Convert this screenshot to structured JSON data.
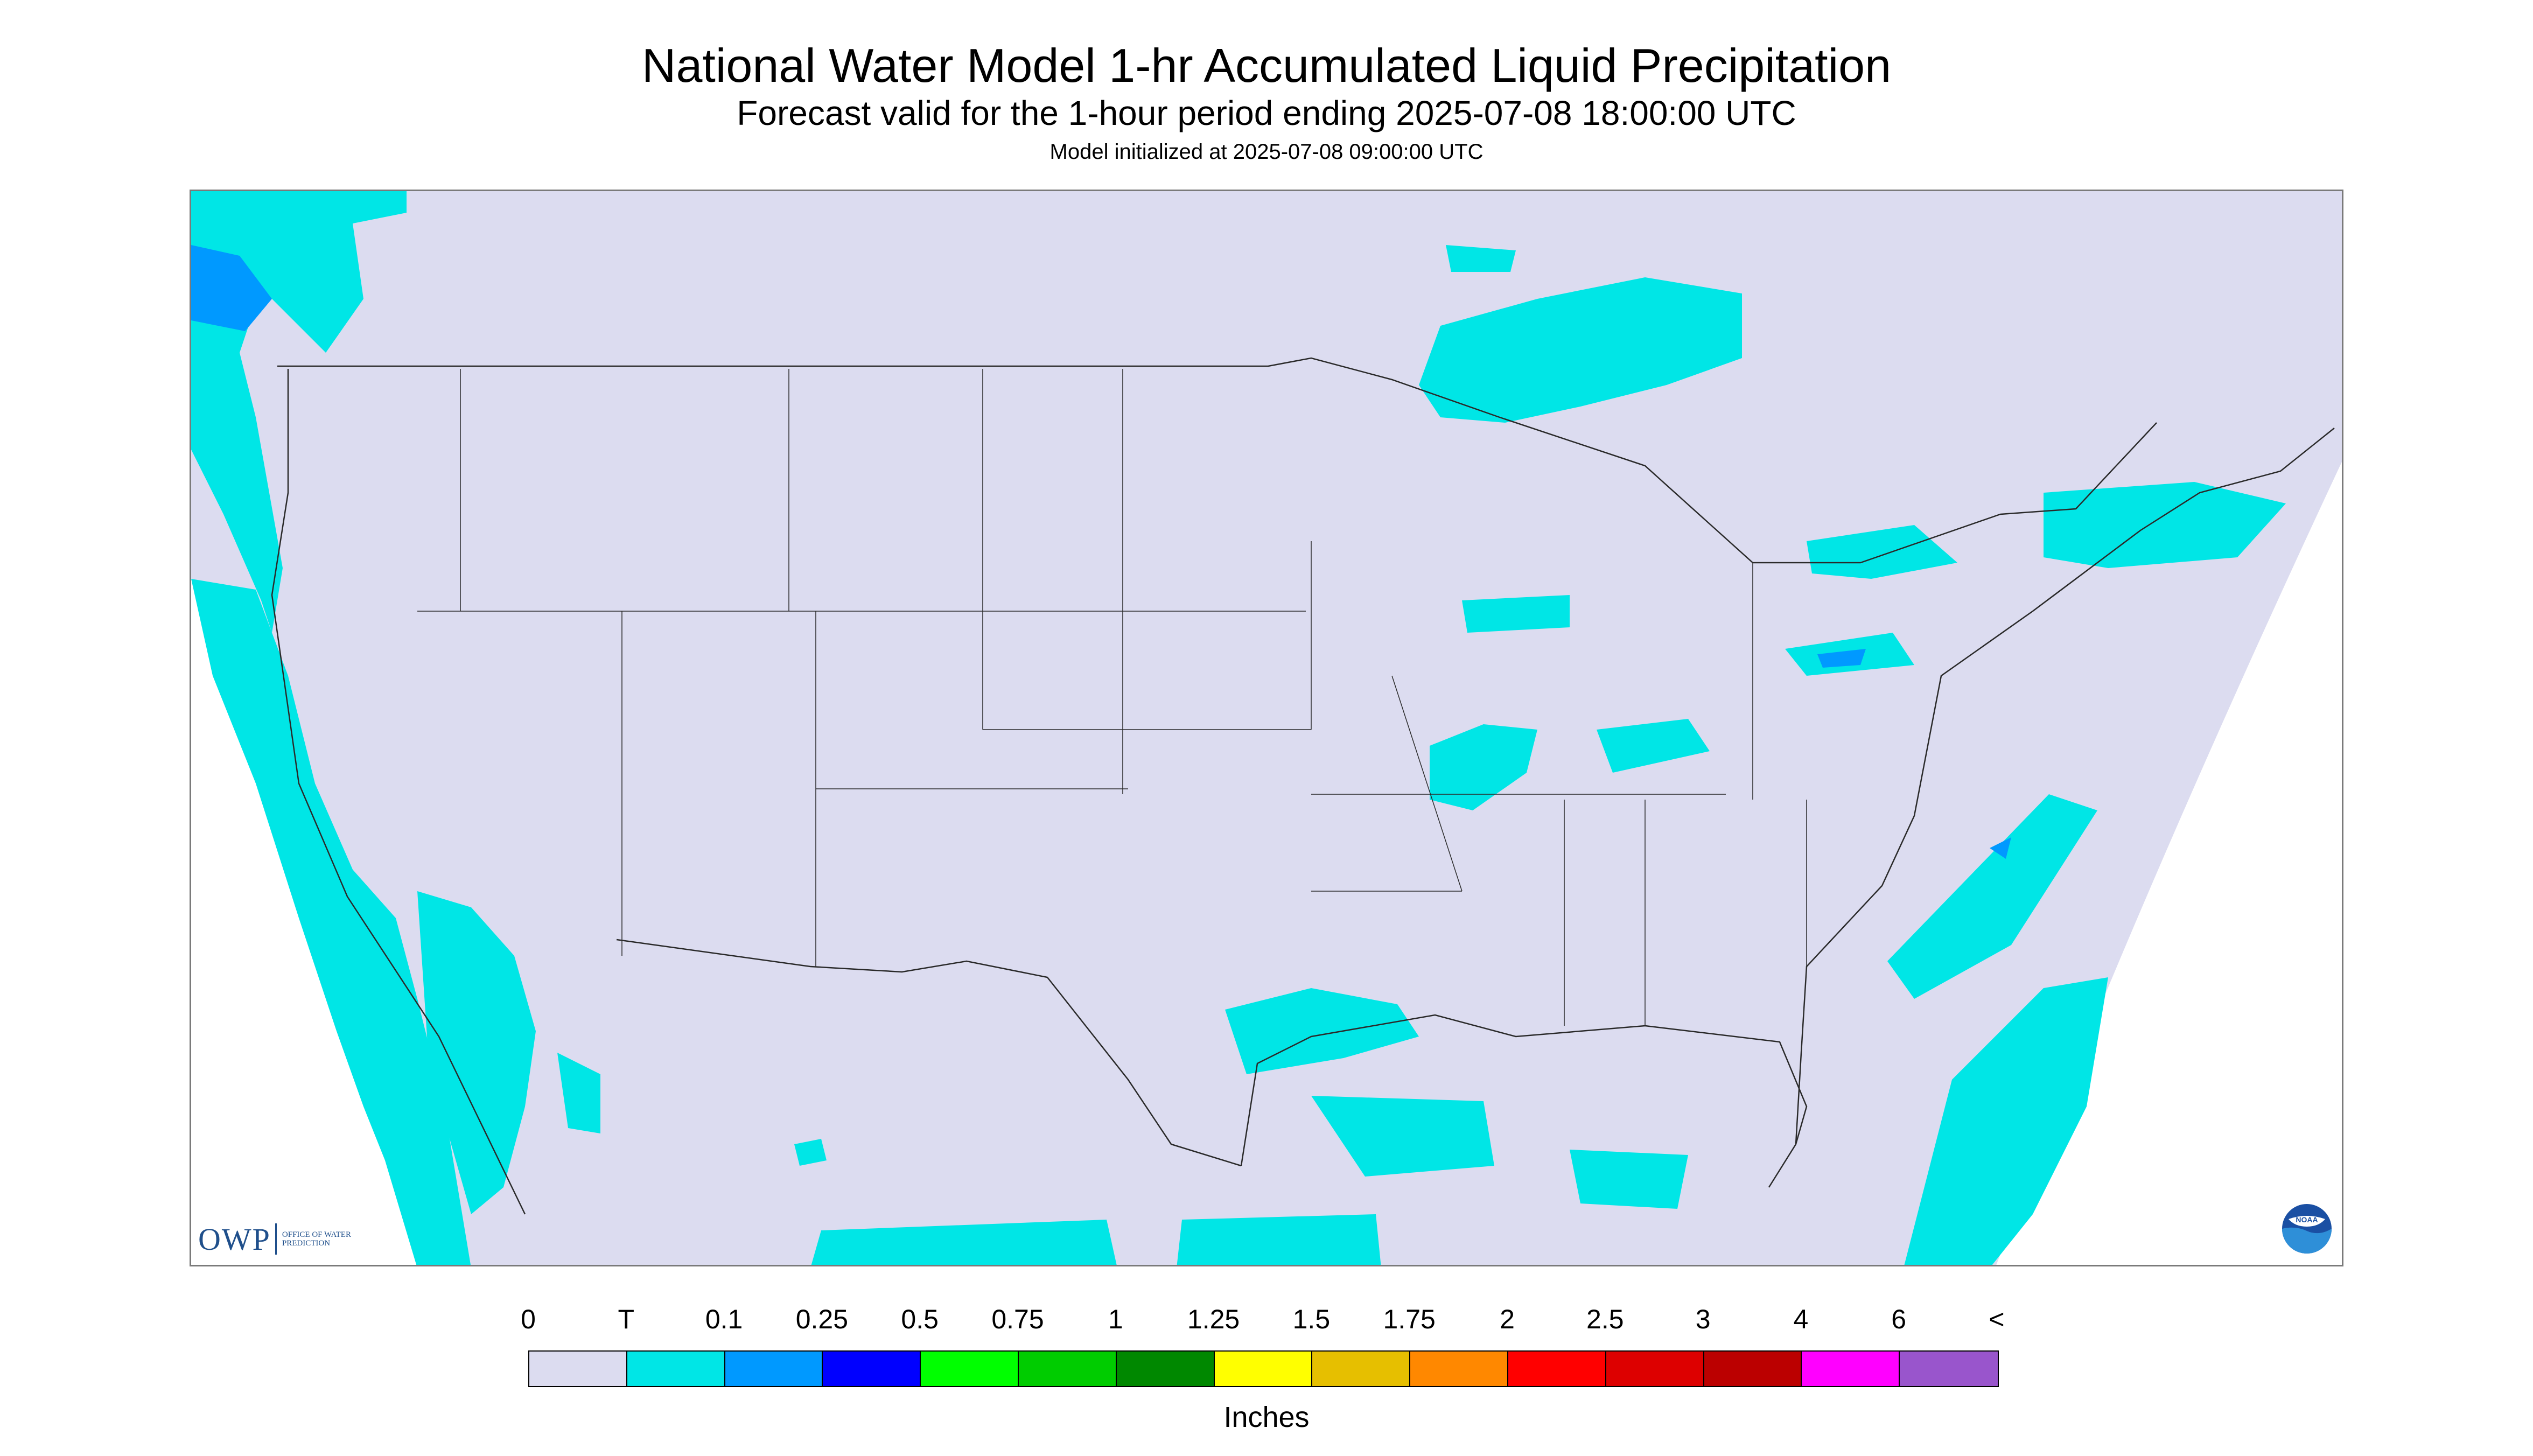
{
  "header": {
    "title": "National Water Model 1-hr Accumulated Liquid Precipitation",
    "subtitle": "Forecast valid for the 1-hour period ending 2025-07-08 18:00:00 UTC",
    "init": "Model initialized at 2025-07-08 09:00:00 UTC"
  },
  "map": {
    "domain_color": "#dcdcf0",
    "outside_color": "#ffffff",
    "boundary_color": "#2a2a2a"
  },
  "logos": {
    "owp_mark": "OWP",
    "owp_text": "OFFICE OF WATER PREDICTION",
    "noaa_text": "NOAA"
  },
  "legend": {
    "labels": [
      "0",
      "T",
      "0.1",
      "0.25",
      "0.5",
      "0.75",
      "1",
      "1.25",
      "1.5",
      "1.75",
      "2",
      "2.5",
      "3",
      "4",
      "6",
      "<"
    ],
    "colors": [
      "#dcdcf0",
      "#00e6e6",
      "#0099ff",
      "#0000ff",
      "#00ff00",
      "#00cc00",
      "#008800",
      "#ffff00",
      "#e6bf00",
      "#ff8800",
      "#ff0000",
      "#dd0000",
      "#bb0000",
      "#ff00ff",
      "#9955cc"
    ],
    "units": "Inches"
  }
}
